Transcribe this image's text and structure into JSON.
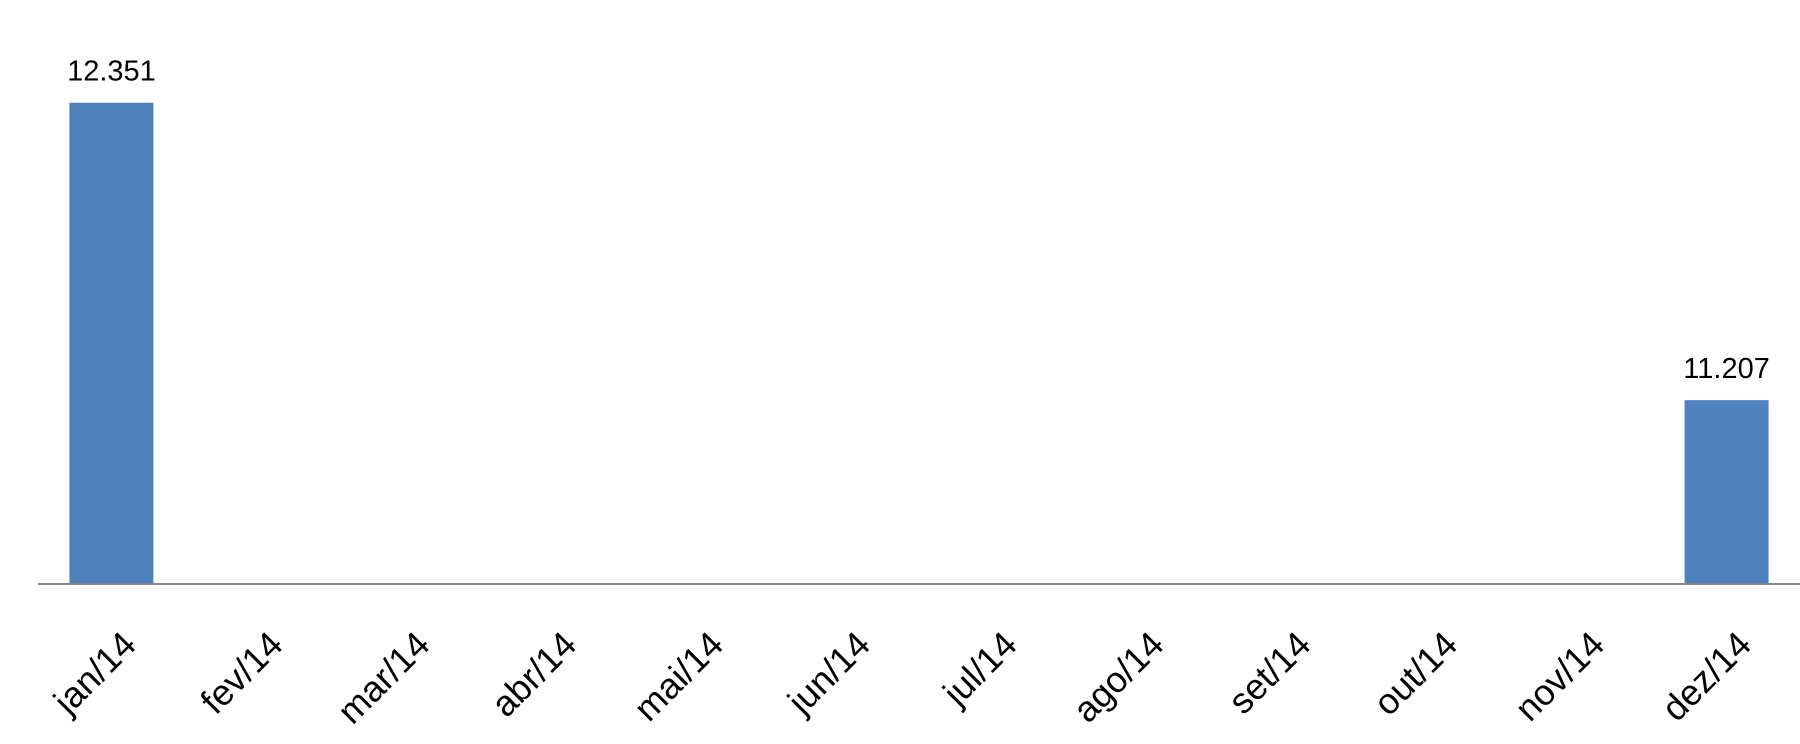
{
  "chart_data": {
    "type": "bar",
    "categories": [
      "jan/14",
      "fev/14",
      "mar/14",
      "abr/14",
      "mai/14",
      "jun/14",
      "jul/14",
      "ago/14",
      "set/14",
      "out/14",
      "nov/14",
      "dez/14"
    ],
    "values": [
      12351,
      null,
      null,
      null,
      null,
      null,
      null,
      null,
      null,
      null,
      null,
      11207
    ],
    "data_labels": [
      "12.351",
      "",
      "",
      "",
      "",
      "",
      "",
      "",
      "",
      "",
      "",
      "11.207"
    ],
    "title": "",
    "xlabel": "",
    "ylabel": "",
    "ylim": [
      10500,
      12500
    ],
    "grid": false,
    "legend": "none",
    "bar_color": "#4f81bd",
    "axis_color": "#868686"
  }
}
